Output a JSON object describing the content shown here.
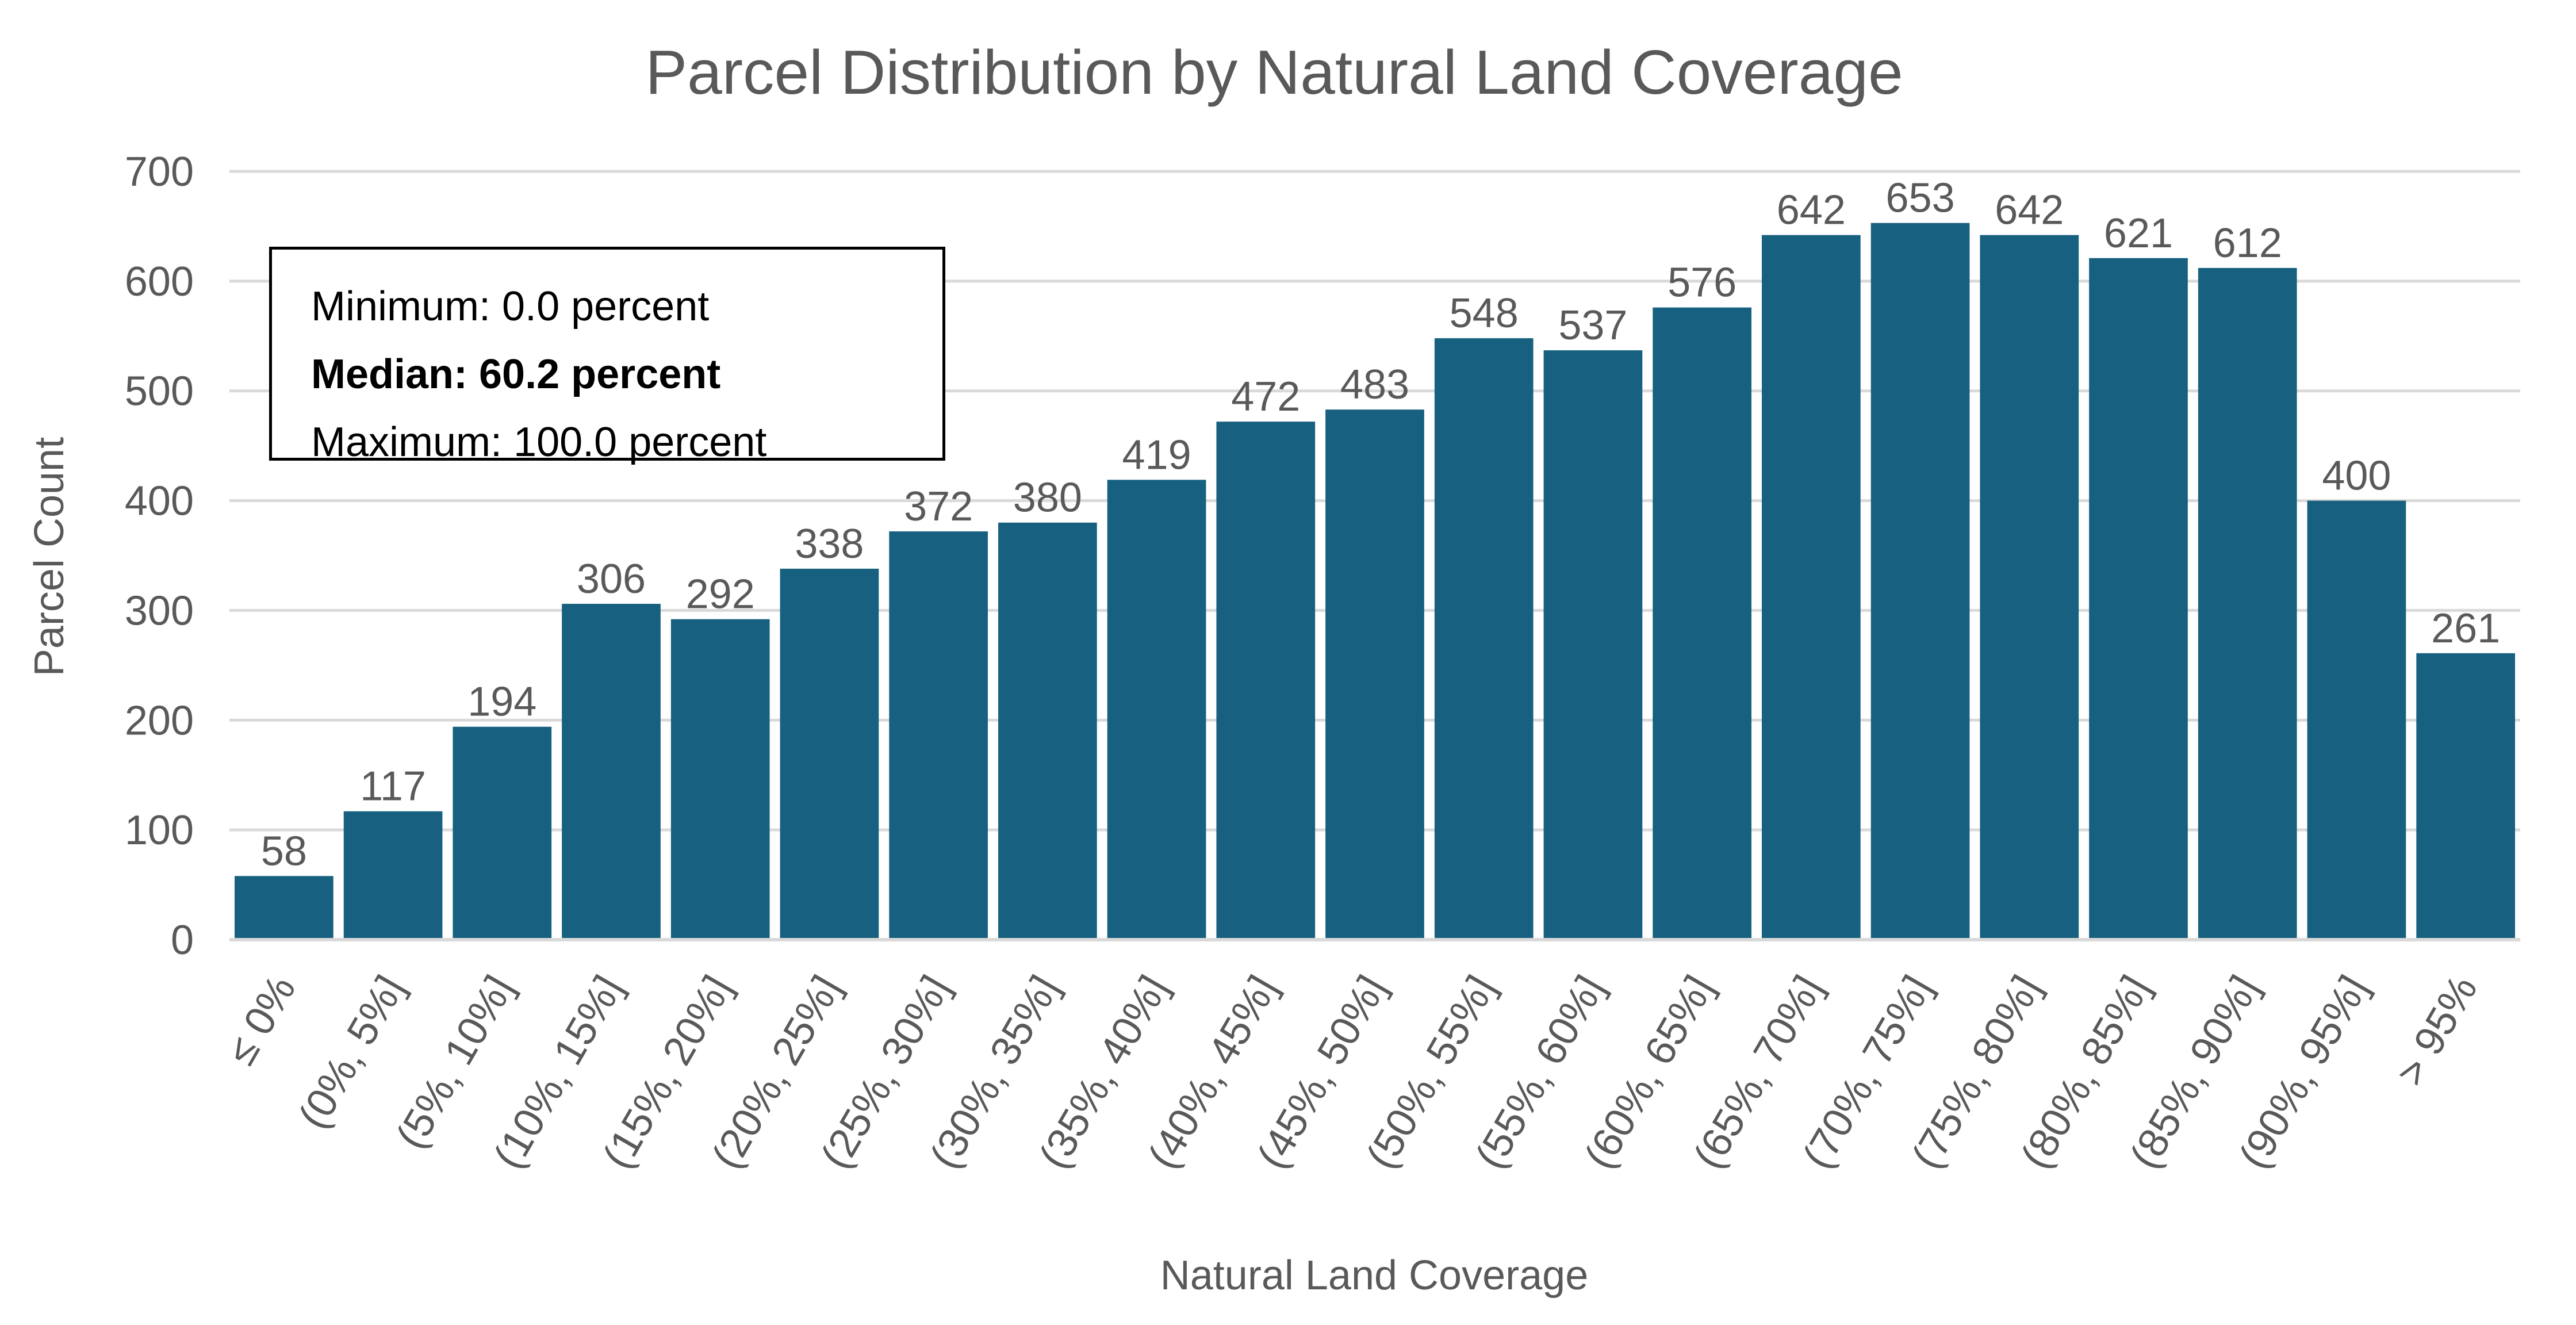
{
  "chart_data": {
    "type": "bar",
    "title": "Parcel Distribution by Natural Land Coverage",
    "xlabel": "Natural Land Coverage",
    "ylabel": "Parcel Count",
    "ylim": [
      0,
      700
    ],
    "yticks": [
      0,
      100,
      200,
      300,
      400,
      500,
      600,
      700
    ],
    "grid": true,
    "bar_color": "#17607f",
    "categories": [
      "≤ 0%",
      "(0%, 5%]",
      "(5%, 10%]",
      "(10%, 15%]",
      "(15%, 20%]",
      "(20%, 25%]",
      "(25%, 30%]",
      "(30%, 35%]",
      "(35%, 40%]",
      "(40%, 45%]",
      "(45%, 50%]",
      "(50%, 55%]",
      "(55%, 60%]",
      "(60%, 65%]",
      "(65%, 70%]",
      "(70%, 75%]",
      "(75%, 80%]",
      "(80%, 85%]",
      "(85%, 90%]",
      "(90%, 95%]",
      "> 95%"
    ],
    "values": [
      58,
      117,
      194,
      306,
      292,
      338,
      372,
      380,
      419,
      472,
      483,
      548,
      537,
      576,
      642,
      653,
      642,
      621,
      612,
      400,
      261
    ]
  },
  "stats": {
    "minimum": "Minimum: 0.0 percent",
    "median": "Median: 60.2 percent",
    "maximum": "Maximum: 100.0 percent"
  }
}
